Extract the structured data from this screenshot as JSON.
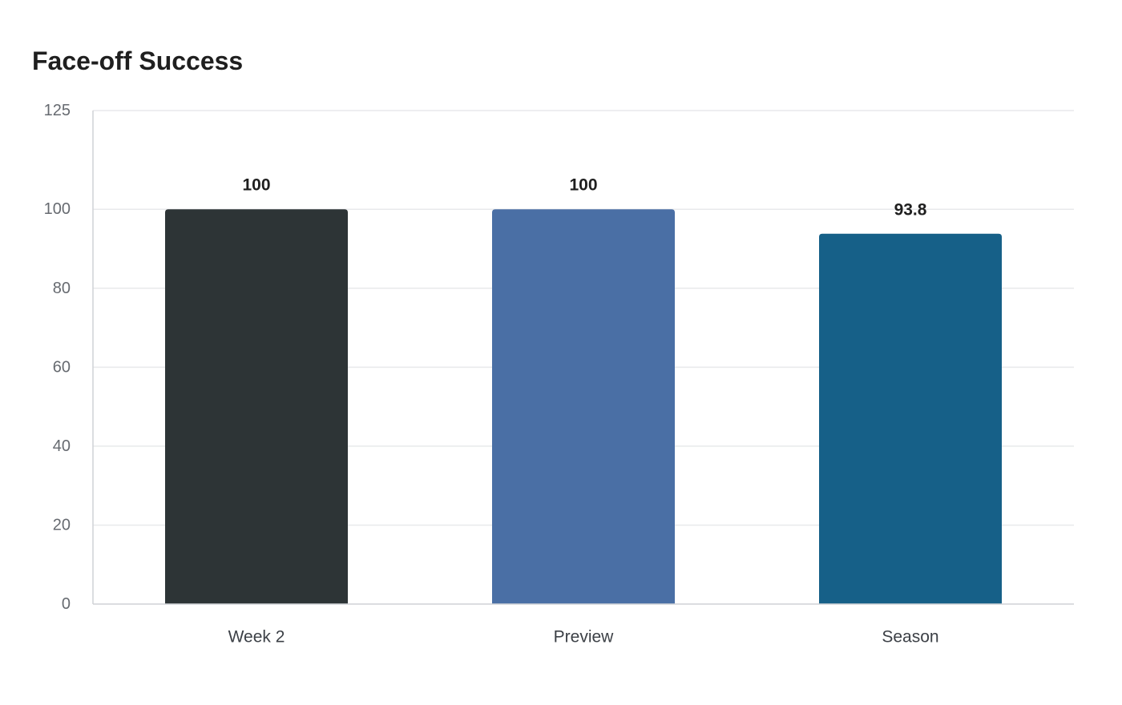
{
  "chart_data": {
    "type": "bar",
    "title": "Face-off Success",
    "xlabel": "",
    "ylabel": "",
    "categories": [
      "Week 2",
      "Preview",
      "Season"
    ],
    "values": [
      100,
      100,
      93.8
    ],
    "value_labels": [
      "100",
      "100",
      "93.8"
    ],
    "colors": [
      "#2d3436",
      "#4a6fa5",
      "#166088"
    ],
    "ylim": [
      0,
      125
    ],
    "yticks": [
      0,
      20,
      40,
      60,
      80,
      100,
      125
    ],
    "grid": true,
    "legend": "none"
  }
}
